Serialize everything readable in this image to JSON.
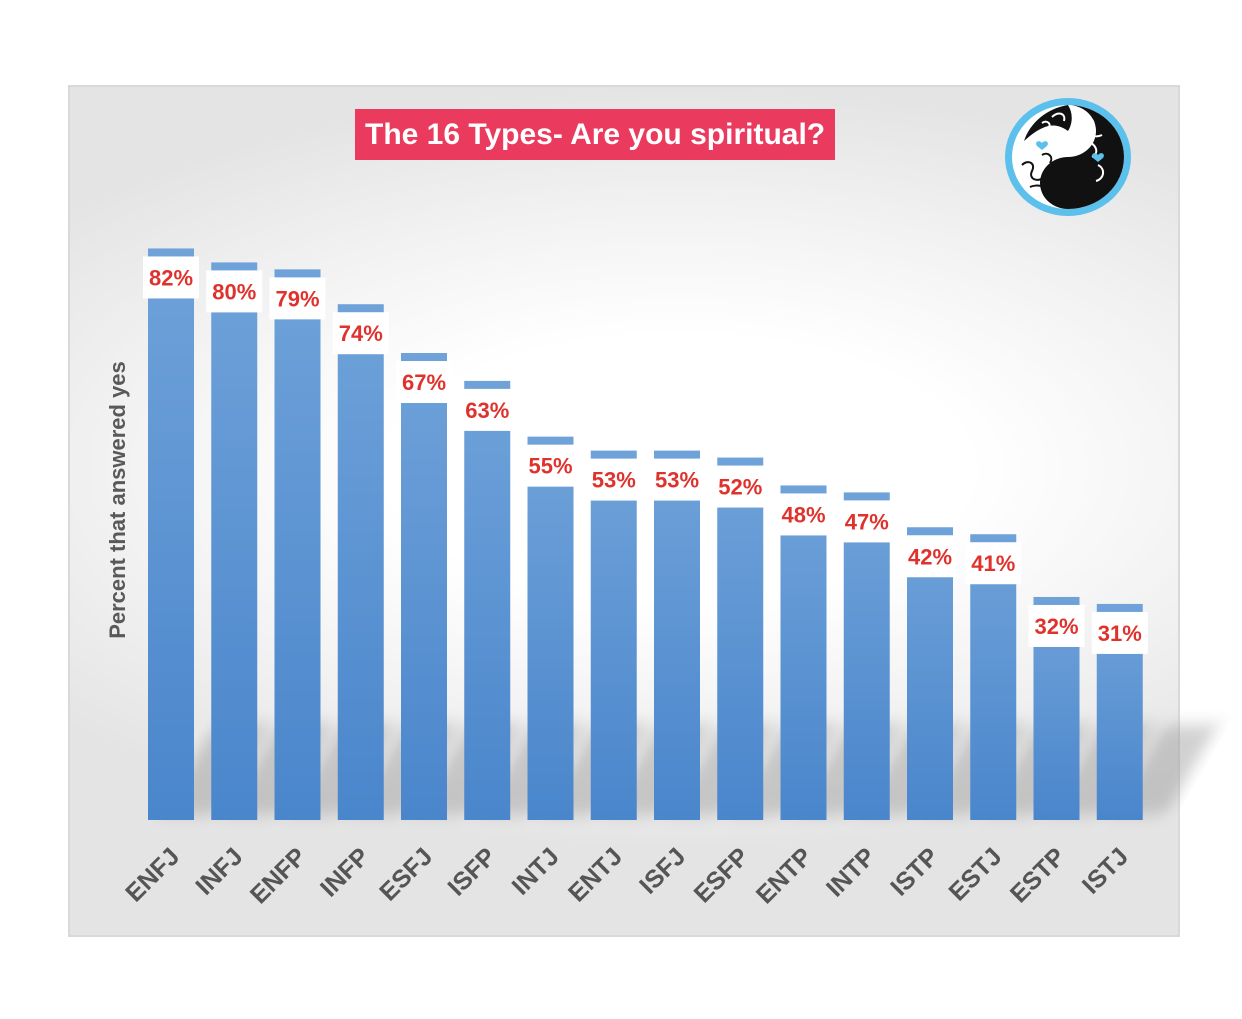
{
  "chart_data": {
    "type": "bar",
    "title": "The 16 Types- Are you spiritual?",
    "xlabel": "",
    "ylabel": "Percent that answered yes",
    "categories": [
      "ENFJ",
      "INFJ",
      "ENFP",
      "INFP",
      "ESFJ",
      "ISFP",
      "INTJ",
      "ENTJ",
      "ISFJ",
      "ESFP",
      "ENTP",
      "INTP",
      "ISTP",
      "ESTJ",
      "ESTP",
      "ISTJ"
    ],
    "values": [
      82,
      80,
      79,
      74,
      67,
      63,
      55,
      53,
      53,
      52,
      48,
      47,
      42,
      41,
      32,
      31
    ],
    "value_labels": [
      "82%",
      "80%",
      "79%",
      "74%",
      "67%",
      "63%",
      "55%",
      "53%",
      "53%",
      "52%",
      "48%",
      "47%",
      "42%",
      "41%",
      "32%",
      "31%"
    ],
    "ylim": [
      0,
      100
    ],
    "grid": false,
    "legend": "none",
    "colors": {
      "bar": "#5b93d0",
      "bar_top": "#7aa9dc",
      "label": "#e0322d",
      "title_bg": "#ea3a5e",
      "axis_text": "#555555"
    }
  },
  "logo": {
    "icon": "yin-yang-brain-icon",
    "ring_color": "#5bc0ec"
  }
}
